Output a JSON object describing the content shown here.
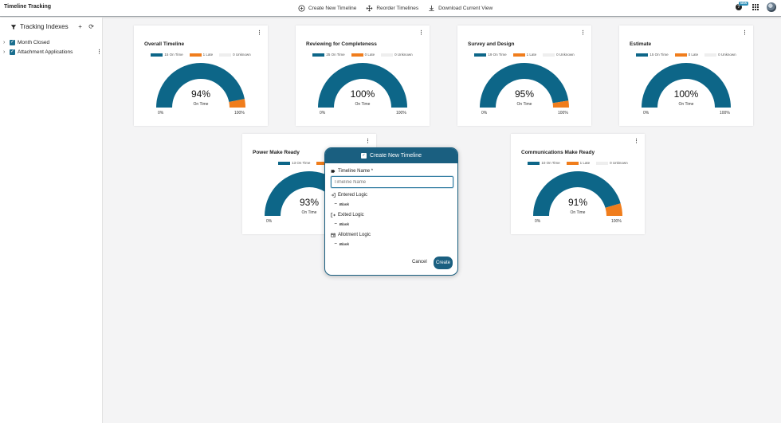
{
  "app": {
    "title": "Timeline Tracking"
  },
  "toolbar": {
    "create_label": "Create New Timeline",
    "reorder_label": "Reorder Timelines",
    "download_label": "Download Current View",
    "new_badge": "NEW"
  },
  "sidebar": {
    "title": "Tracking Indexes",
    "add_label": "+",
    "refresh_label": "⟳",
    "items": [
      {
        "label": "Month Closed",
        "checked": true
      },
      {
        "label": "Attachment Applications",
        "checked": true
      }
    ]
  },
  "colors": {
    "on_time": "#0d6688",
    "late": "#f07d1c",
    "unknown": "#eeeeee",
    "accent": "#1a5f80"
  },
  "cards": [
    {
      "title": "Overall Timeline",
      "on_time": "15 On Time",
      "late": "1 Late",
      "unknown": "0 Unknown",
      "on_time_count": 15,
      "late_count": 1,
      "unknown_count": 0,
      "percent": "94%",
      "sub": "On Time",
      "min": "0%",
      "max": "100%"
    },
    {
      "title": "Reviewing for Completeness",
      "on_time": "25 On Time",
      "late": "0 Late",
      "unknown": "0 Unknown",
      "on_time_count": 25,
      "late_count": 0,
      "unknown_count": 0,
      "percent": "100%",
      "sub": "On Time",
      "min": "0%",
      "max": "100%"
    },
    {
      "title": "Survey and Design",
      "on_time": "19 On Time",
      "late": "1 Late",
      "unknown": "0 Unknown",
      "on_time_count": 19,
      "late_count": 1,
      "unknown_count": 0,
      "percent": "95%",
      "sub": "On Time",
      "min": "0%",
      "max": "100%"
    },
    {
      "title": "Estimate",
      "on_time": "15 On Time",
      "late": "0 Late",
      "unknown": "0 Unknown",
      "on_time_count": 15,
      "late_count": 0,
      "unknown_count": 0,
      "percent": "100%",
      "sub": "On Time",
      "min": "0%",
      "max": "100%"
    },
    {
      "title": "Power Make Ready",
      "on_time": "13 On Time",
      "late": "1 Late",
      "unknown": "",
      "on_time_count": 13,
      "late_count": 1,
      "unknown_count": 0,
      "percent": "93%",
      "sub": "On Time",
      "min": "0%",
      "max": "100%"
    },
    {
      "title": "Communications Make Ready",
      "on_time": "10 On Time",
      "late": "1 Late",
      "unknown": "0 Unknown",
      "on_time_count": 10,
      "late_count": 1,
      "unknown_count": 0,
      "percent": "91%",
      "sub": "On Time",
      "min": "0%",
      "max": "100%"
    }
  ],
  "modal": {
    "title": "Create New Timeline",
    "name_label": "Timeline Name *",
    "name_placeholder": "Timeline Name",
    "entered_label": "Entered Logic",
    "entered_value": "Blank",
    "exited_label": "Exited Logic",
    "exited_value": "Blank",
    "allotment_label": "Allotment Logic",
    "allotment_value": "Blank",
    "cancel_label": "Cancel",
    "create_label": "Create"
  }
}
